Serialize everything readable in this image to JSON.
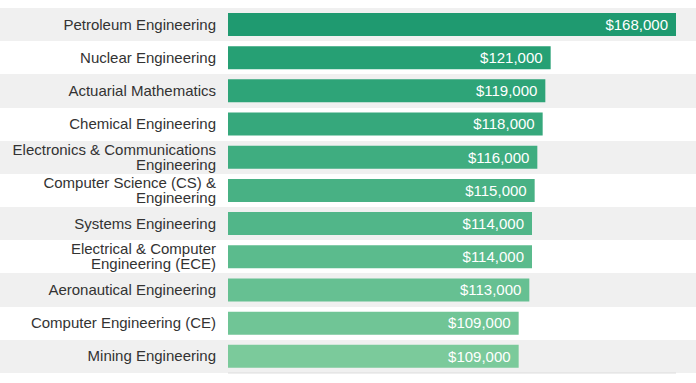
{
  "chart_data": {
    "type": "bar",
    "orientation": "horizontal",
    "categories": [
      "Petroleum Engineering",
      "Nuclear Engineering",
      "Actuarial Mathematics",
      "Chemical Engineering",
      "Electronics & Communications Engineering",
      "Computer Science (CS) & Engineering",
      "Systems Engineering",
      "Electrical & Computer Engineering (ECE)",
      "Aeronautical Engineering",
      "Computer Engineering (CE)",
      "Mining Engineering"
    ],
    "values": [
      168000,
      121000,
      119000,
      118000,
      116000,
      115000,
      114000,
      114000,
      113000,
      109000,
      109000
    ],
    "value_labels": [
      "$168,000",
      "$121,000",
      "$119,000",
      "$118,000",
      "$116,000",
      "$115,000",
      "$114,000",
      "$114,000",
      "$113,000",
      "$109,000",
      "$109,000"
    ],
    "colors": [
      "#1f9a70",
      "#26a074",
      "#2ea478",
      "#36a87c",
      "#3fad80",
      "#48b184",
      "#51b689",
      "#5bbb8d",
      "#66c092",
      "#70c596",
      "#7bca9b"
    ],
    "xlim": [
      0,
      168000
    ],
    "tick_labels": "y",
    "data_labels": true
  }
}
